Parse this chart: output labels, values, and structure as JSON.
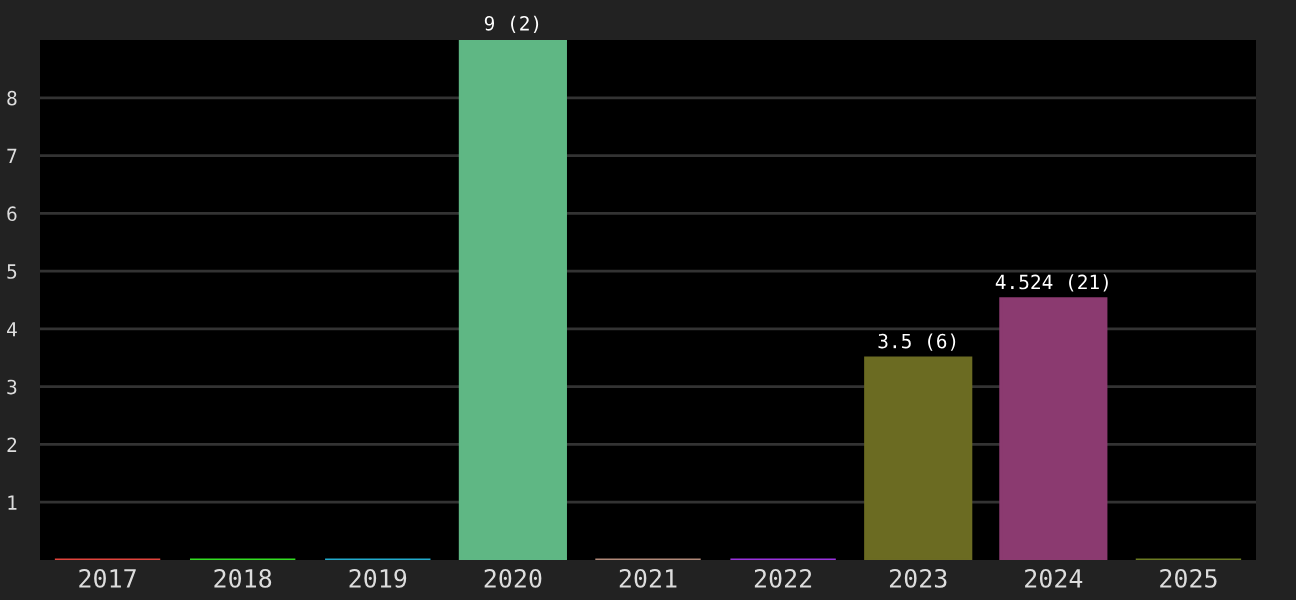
{
  "chart_data": {
    "type": "bar",
    "categories": [
      "2017",
      "2018",
      "2019",
      "2020",
      "2021",
      "2022",
      "2023",
      "2024",
      "2025"
    ],
    "values": [
      0,
      0,
      0,
      9,
      0,
      0,
      3.5,
      4.524,
      0
    ],
    "colors": [
      "#e0443c",
      "#33dd22",
      "#22aacc",
      "#5fb784",
      "#b08878",
      "#9933dd",
      "#6b6b22",
      "#8b3a70",
      "#6b7a22"
    ],
    "value_labels": [
      null,
      null,
      null,
      "9 (2)",
      null,
      null,
      "3.5 (6)",
      "4.524 (21)",
      null
    ],
    "ylim": [
      0,
      9
    ],
    "yticks": [
      1,
      2,
      3,
      4,
      5,
      6,
      7,
      8
    ],
    "grid": "y"
  }
}
